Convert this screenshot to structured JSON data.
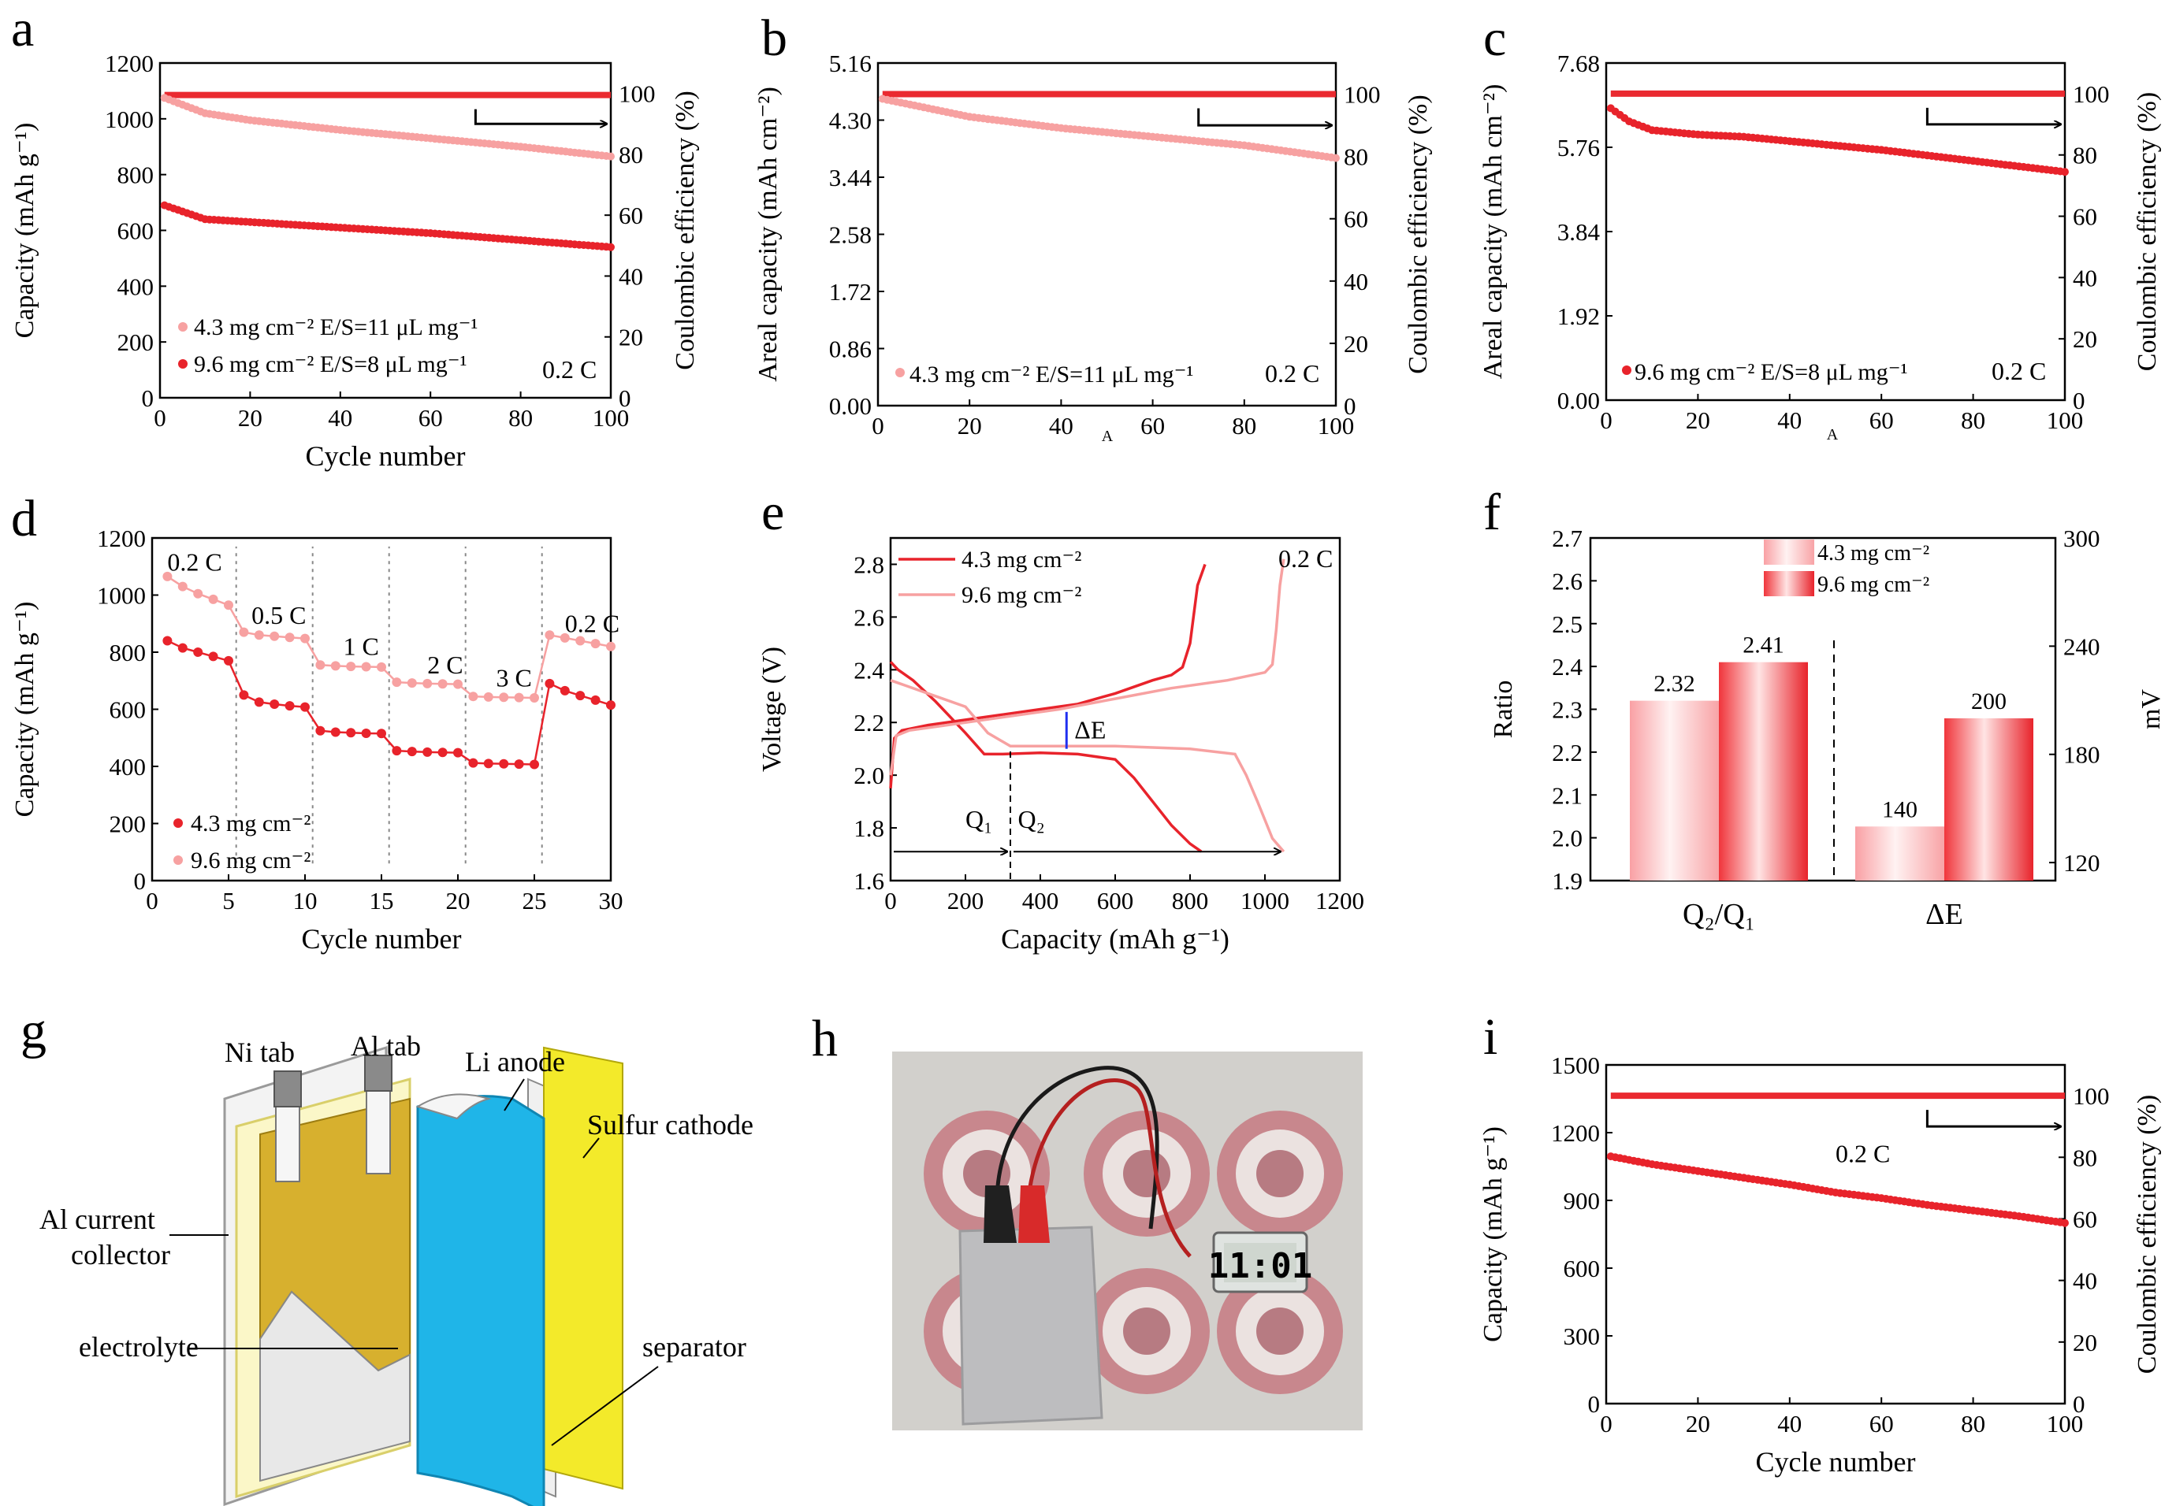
{
  "figure": {
    "panel_letters": [
      "a",
      "b",
      "c",
      "d",
      "e",
      "f",
      "g",
      "h",
      "i"
    ]
  },
  "colors": {
    "dark": "#e8232b",
    "light": "#f7a1a1",
    "ce": "#ea2a30",
    "arrow": "#000000",
    "blue_label": "#2b2bf0",
    "green_label": "#18a018",
    "delta": "#1f2ff0"
  },
  "chart_data": [
    {
      "id": "a",
      "type": "line",
      "xlabel": "Cycle number",
      "ylabel": "Capacity (mAh g⁻¹)",
      "y2label": "Coulombic efficiency (%)",
      "xlim": [
        0,
        100
      ],
      "ylim": [
        0,
        1200
      ],
      "y2lim": [
        0,
        110
      ],
      "xticks": [
        0,
        20,
        40,
        60,
        80,
        100
      ],
      "yticks": [
        0,
        200,
        400,
        600,
        800,
        1000,
        1200
      ],
      "y2ticks": [
        0,
        20,
        40,
        60,
        80,
        100
      ],
      "series": [
        {
          "name": "4.3 mg cm⁻²  E/S=11 μL mg⁻¹",
          "color": "light",
          "x": [
            1,
            10,
            20,
            40,
            60,
            80,
            100
          ],
          "values": [
            1075,
            1020,
            995,
            960,
            930,
            900,
            865
          ]
        },
        {
          "name": "9.6 mg cm⁻²  E/S=8 μL mg⁻¹",
          "color": "dark",
          "x": [
            1,
            10,
            20,
            30,
            40,
            60,
            80,
            100
          ],
          "values": [
            690,
            640,
            630,
            620,
            610,
            590,
            565,
            540
          ]
        }
      ],
      "ce": {
        "x": [
          1,
          100
        ],
        "values": [
          99.5,
          99.5
        ]
      },
      "annotation": "0.2 C"
    },
    {
      "id": "b",
      "type": "line",
      "xlabel": "",
      "ylabel": "Areal capacity (mAh cm⁻²)",
      "y2label": "Coulombic efficiency (%)",
      "xlim": [
        0,
        100
      ],
      "ylim": [
        0,
        5.16
      ],
      "y2lim": [
        0,
        110
      ],
      "xticks": [
        0,
        20,
        40,
        60,
        80,
        100
      ],
      "ytick_labels": [
        "0.00",
        "0.86",
        "1.72",
        "2.58",
        "3.44",
        "4.30",
        "5.16"
      ],
      "y2ticks": [
        0,
        20,
        40,
        60,
        80,
        100
      ],
      "series": [
        {
          "name": "4.3 mg cm⁻²  E/S=11 μL mg⁻¹",
          "color": "light",
          "x": [
            1,
            20,
            40,
            60,
            80,
            100
          ],
          "values": [
            4.62,
            4.35,
            4.18,
            4.05,
            3.92,
            3.73
          ]
        }
      ],
      "ce": {
        "x": [
          1,
          100
        ],
        "values": [
          100,
          100
        ]
      },
      "annotation": "0.2 C",
      "stray_marks": [
        "A"
      ]
    },
    {
      "id": "c",
      "type": "line",
      "xlabel": "",
      "ylabel": "Areal capacity (mAh cm⁻²)",
      "y2label": "Coulombic efficiency (%)",
      "xlim": [
        0,
        100
      ],
      "ylim": [
        0,
        7.68
      ],
      "y2lim": [
        0,
        110
      ],
      "xticks": [
        0,
        20,
        40,
        60,
        80,
        100
      ],
      "ytick_labels": [
        "0.00",
        "1.92",
        "3.84",
        "5.76",
        "7.68"
      ],
      "y2ticks": [
        0,
        20,
        40,
        60,
        80,
        100
      ],
      "series": [
        {
          "name": "9.6 mg cm⁻²  E/S=8 μL mg⁻¹",
          "color": "dark",
          "x": [
            1,
            5,
            10,
            20,
            30,
            40,
            60,
            80,
            100
          ],
          "values": [
            6.65,
            6.35,
            6.15,
            6.05,
            6.0,
            5.9,
            5.7,
            5.45,
            5.2
          ]
        }
      ],
      "ce": {
        "x": [
          1,
          100
        ],
        "values": [
          100,
          100
        ]
      },
      "annotation": "0.2 C",
      "stray_marks": [
        "A"
      ]
    },
    {
      "id": "d",
      "type": "line",
      "xlabel": "Cycle number",
      "ylabel": "Capacity (mAh g⁻¹)",
      "xlim": [
        0,
        30
      ],
      "ylim": [
        0,
        1200
      ],
      "xticks": [
        0,
        5,
        10,
        15,
        20,
        25,
        30
      ],
      "yticks": [
        0,
        200,
        400,
        600,
        800,
        1000,
        1200
      ],
      "rate_labels": [
        "0.2 C",
        "0.5 C",
        "1 C",
        "2 C",
        "3 C",
        "0.2 C"
      ],
      "rate_label_pos": [
        [
          1.0,
          1085
        ],
        [
          6.5,
          900
        ],
        [
          12.5,
          790
        ],
        [
          18.0,
          725
        ],
        [
          22.5,
          680
        ],
        [
          27.0,
          870
        ]
      ],
      "dividers": [
        5.5,
        10.5,
        15.5,
        20.5,
        25.5
      ],
      "series": [
        {
          "name": "4.3 mg cm⁻²",
          "color": "dark",
          "x": [
            1,
            2,
            3,
            4,
            5,
            6,
            7,
            8,
            9,
            10,
            11,
            12,
            13,
            14,
            15,
            16,
            17,
            18,
            19,
            20,
            21,
            22,
            23,
            24,
            25,
            26,
            27,
            28,
            29,
            30
          ],
          "values": [
            840,
            815,
            800,
            785,
            770,
            650,
            625,
            618,
            612,
            608,
            525,
            520,
            518,
            516,
            515,
            455,
            452,
            450,
            449,
            448,
            412,
            410,
            409,
            408,
            407,
            690,
            665,
            648,
            632,
            615
          ]
        },
        {
          "name": "9.6 mg cm⁻²",
          "color": "light",
          "x": [
            1,
            2,
            3,
            4,
            5,
            6,
            7,
            8,
            9,
            10,
            11,
            12,
            13,
            14,
            15,
            16,
            17,
            18,
            19,
            20,
            21,
            22,
            23,
            24,
            25,
            26,
            27,
            28,
            29,
            30
          ],
          "values": [
            1065,
            1030,
            1005,
            985,
            965,
            870,
            860,
            856,
            852,
            848,
            755,
            752,
            750,
            749,
            748,
            695,
            692,
            690,
            689,
            688,
            645,
            643,
            642,
            641,
            640,
            860,
            850,
            840,
            830,
            820
          ]
        }
      ]
    },
    {
      "id": "e",
      "type": "line",
      "xlabel": "Capacity (mAh g⁻¹)",
      "ylabel": "Voltage (V)",
      "xlim": [
        0,
        1200
      ],
      "ylim": [
        1.6,
        2.9
      ],
      "xticks": [
        0,
        200,
        400,
        600,
        800,
        1000,
        1200
      ],
      "ytick_labels": [
        "1.6",
        "1.8",
        "2.0",
        "2.2",
        "2.4",
        "2.6",
        "2.8"
      ],
      "series": [
        {
          "name": "4.3 mg cm⁻²",
          "color": "dark",
          "discharge": {
            "x": [
              0,
              20,
              60,
              120,
              200,
              250,
              300,
              400,
              500,
              600,
              650,
              700,
              750,
              800,
              830
            ],
            "values": [
              2.43,
              2.4,
              2.36,
              2.28,
              2.16,
              2.08,
              2.08,
              2.085,
              2.08,
              2.06,
              1.99,
              1.9,
              1.81,
              1.74,
              1.71
            ]
          },
          "charge": {
            "x": [
              0,
              10,
              30,
              100,
              200,
              300,
              400,
              500,
              600,
              700,
              750,
              780,
              800,
              820,
              840
            ],
            "values": [
              1.95,
              2.14,
              2.17,
              2.19,
              2.21,
              2.23,
              2.25,
              2.27,
              2.31,
              2.36,
              2.38,
              2.41,
              2.5,
              2.72,
              2.8
            ]
          }
        },
        {
          "name": "9.6 mg cm⁻²",
          "color": "light",
          "discharge": {
            "x": [
              0,
              40,
              120,
              200,
              260,
              320,
              450,
              600,
              800,
              920,
              950,
              980,
              1000,
              1020,
              1050
            ],
            "values": [
              2.36,
              2.34,
              2.3,
              2.26,
              2.16,
              2.11,
              2.11,
              2.11,
              2.1,
              2.08,
              2.0,
              1.9,
              1.83,
              1.76,
              1.71
            ]
          },
          "charge": {
            "x": [
              0,
              15,
              50,
              150,
              300,
              450,
              600,
              750,
              900,
              1000,
              1020,
              1030,
              1040,
              1050
            ],
            "values": [
              2.0,
              2.15,
              2.17,
              2.19,
              2.22,
              2.25,
              2.29,
              2.33,
              2.36,
              2.39,
              2.42,
              2.55,
              2.72,
              2.82
            ]
          }
        }
      ],
      "annotation": "0.2 C",
      "delta_label": "ΔE",
      "q1_label": "Q₁",
      "q2_label": "Q₂",
      "q_split": 320
    },
    {
      "id": "f",
      "type": "bar",
      "ylabel": "Ratio",
      "y2label": "mV",
      "ylim": [
        1.9,
        2.7
      ],
      "y2lim": [
        110,
        300
      ],
      "ytick_labels": [
        "1.9",
        "2.0",
        "2.1",
        "2.2",
        "2.3",
        "2.4",
        "2.5",
        "2.6",
        "2.7"
      ],
      "y2ticks": [
        120,
        180,
        240,
        300
      ],
      "categories": [
        "Q₂/Q₁",
        "ΔE"
      ],
      "series": [
        {
          "name": "4.3 mg cm⁻²",
          "values": [
            2.32,
            140
          ],
          "labels": [
            "2.32",
            "140"
          ]
        },
        {
          "name": "9.6 mg cm⁻²",
          "values": [
            2.41,
            200
          ],
          "labels": [
            "2.41",
            "200"
          ]
        }
      ]
    },
    {
      "id": "i",
      "type": "line",
      "xlabel": "Cycle number",
      "ylabel": "Capacity (mAh g⁻¹)",
      "y2label": "Coulombic efficiency (%)",
      "xlim": [
        0,
        100
      ],
      "ylim": [
        0,
        1500
      ],
      "y2lim": [
        0,
        110
      ],
      "xticks": [
        0,
        20,
        40,
        60,
        80,
        100
      ],
      "yticks": [
        0,
        300,
        600,
        900,
        1200,
        1500
      ],
      "y2ticks": [
        0,
        20,
        40,
        60,
        80,
        100
      ],
      "series": [
        {
          "name": "capacity",
          "color": "dark",
          "x": [
            1,
            10,
            20,
            30,
            40,
            50,
            60,
            70,
            80,
            90,
            100
          ],
          "values": [
            1095,
            1060,
            1030,
            1000,
            970,
            935,
            910,
            880,
            855,
            830,
            800
          ]
        }
      ],
      "ce": {
        "x": [
          1,
          100
        ],
        "values": [
          100,
          100
        ]
      },
      "annotation": "0.2 C"
    }
  ],
  "panel_g": {
    "labels": [
      "Ni tab",
      "Al tab",
      "Li anode",
      "Sulfur cathode",
      "Al current",
      "collector",
      "electrolyte",
      "separator"
    ]
  },
  "panel_h": {
    "clock_text": "11:01"
  }
}
